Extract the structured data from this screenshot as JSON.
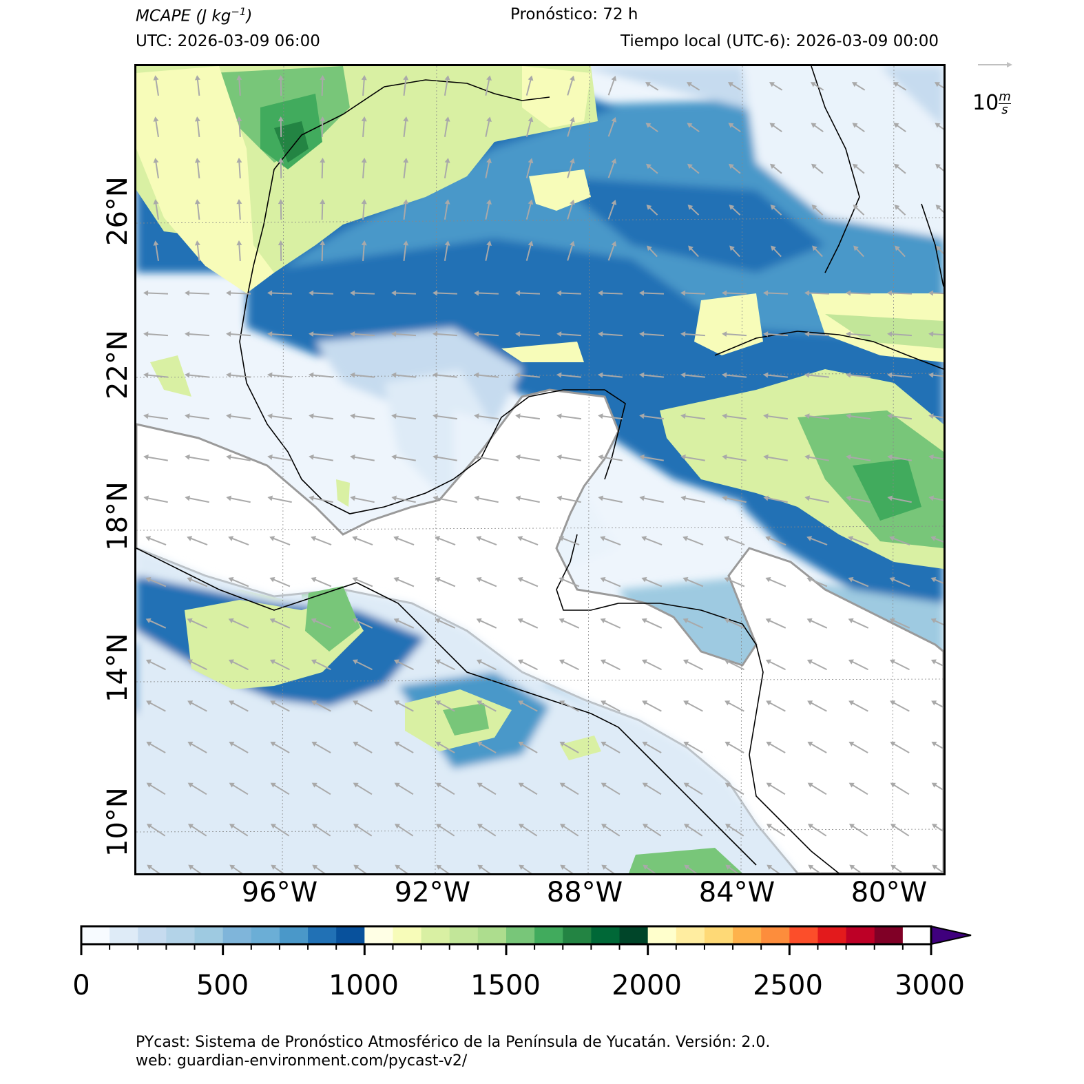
{
  "header": {
    "variable": "MCAPE",
    "units_prefix": "(J kg",
    "units_exp": "−1",
    "units_suffix": ")",
    "forecast": "Pronóstico: 72 h",
    "utc": "UTC:  2026-03-09 06:00",
    "local": "Tiempo local (UTC-6): 2026-03-09 00:00"
  },
  "map": {
    "lat_labels": [
      "26°N",
      "22°N",
      "18°N",
      "14°N",
      "10°N"
    ],
    "lon_labels": [
      "96°W",
      "92°W",
      "88°W",
      "84°W",
      "80°W"
    ],
    "wind_direction": "east-to-west trade flow",
    "arrow_color": "#a9a9a9",
    "coast_color": "#000000"
  },
  "quiver_key": {
    "value": "10",
    "unit_num": "m",
    "unit_den": "s"
  },
  "colorbar": {
    "ticks": [
      "0",
      "500",
      "1000",
      "1500",
      "2000",
      "2500",
      "3000"
    ],
    "min": 0,
    "max": 3000,
    "step": 100,
    "extend": "max",
    "colors": [
      "#f7fbff",
      "#deebf7",
      "#c6dbef",
      "#b3d3e8",
      "#9ecae1",
      "#7fb5da",
      "#6baed6",
      "#4a98c9",
      "#2171b5",
      "#08519c",
      "#ffffe5",
      "#f7fcb9",
      "#d9f0a3",
      "#c2e699",
      "#addd8e",
      "#78c679",
      "#41ab5d",
      "#238443",
      "#006837",
      "#004529",
      "#ffffcc",
      "#ffeda0",
      "#fed976",
      "#feb24c",
      "#fd8d3c",
      "#fc4e2a",
      "#e31a1c",
      "#bd0026",
      "#800026",
      "#ffffff",
      "#efedf5",
      "#dadaeb",
      "#bcbddc",
      "#9e9ac8",
      "#807dba",
      "#6a51a3",
      "#54278f",
      "#3f007d"
    ],
    "extend_color": "#3f007d"
  },
  "footer": {
    "line1": "PYcast: Sistema de Pronóstico Atmosférico de la Península de Yucatán. Versión: 2.0.",
    "line2": "web: guardian-environment.com/pycast-v2/"
  }
}
